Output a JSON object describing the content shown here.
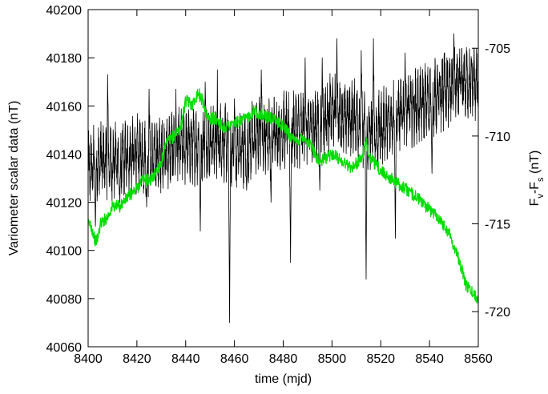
{
  "chart_data": {
    "type": "line",
    "xlabel": "time (mjd)",
    "ylabel_left": "Variometer scalar data (nT)",
    "ylabel_right": {
      "main": "F",
      "sub1": "v",
      "dash": "-F",
      "sub2": "s",
      "unit": " (nT)"
    },
    "xlim": [
      8400,
      8560
    ],
    "ylim_left": [
      40060,
      40200
    ],
    "ylim_right": [
      -722,
      -702.8
    ],
    "x_ticks": [
      8400,
      8420,
      8440,
      8460,
      8480,
      8500,
      8520,
      8540,
      8560
    ],
    "y_left_ticks": [
      40060,
      40080,
      40100,
      40120,
      40140,
      40160,
      40180,
      40200
    ],
    "y_right_ticks": [
      -705,
      -710,
      -715,
      -720
    ],
    "grid": false,
    "series": [
      {
        "axis": "left",
        "color": "#000000",
        "base": [
          [
            8400,
            40133
          ],
          [
            8405,
            40138
          ],
          [
            8410,
            40137
          ],
          [
            8415,
            40138
          ],
          [
            8420,
            40140
          ],
          [
            8425,
            40138
          ],
          [
            8430,
            40140
          ],
          [
            8435,
            40143
          ],
          [
            8440,
            40143
          ],
          [
            8445,
            40144
          ],
          [
            8450,
            40145
          ],
          [
            8455,
            40146
          ],
          [
            8460,
            40140
          ],
          [
            8465,
            40143
          ],
          [
            8470,
            40148
          ],
          [
            8475,
            40148
          ],
          [
            8480,
            40150
          ],
          [
            8485,
            40150
          ],
          [
            8490,
            40151
          ],
          [
            8495,
            40152
          ],
          [
            8500,
            40158
          ],
          [
            8505,
            40155
          ],
          [
            8510,
            40155
          ],
          [
            8515,
            40148
          ],
          [
            8520,
            40150
          ],
          [
            8525,
            40155
          ],
          [
            8530,
            40158
          ],
          [
            8535,
            40160
          ],
          [
            8540,
            40162
          ],
          [
            8545,
            40165
          ],
          [
            8550,
            40168
          ],
          [
            8555,
            40170
          ],
          [
            8560,
            40170
          ]
        ],
        "noise_amplitude": 15,
        "spikes": [
          [
            8403,
            40110
          ],
          [
            8413,
            40120
          ],
          [
            8424,
            40118
          ],
          [
            8436,
            40122
          ],
          [
            8446,
            40108
          ],
          [
            8453,
            40112
          ],
          [
            8458,
            40070
          ],
          [
            8465,
            40125
          ],
          [
            8475,
            40120
          ],
          [
            8483,
            40095
          ],
          [
            8495,
            40125
          ],
          [
            8514,
            40088
          ],
          [
            8526,
            40105
          ],
          [
            8541,
            40132
          ]
        ],
        "peaks": [
          [
            8408,
            40173
          ],
          [
            8425,
            40167
          ],
          [
            8436,
            40167
          ],
          [
            8448,
            40170
          ],
          [
            8453,
            40175
          ],
          [
            8460,
            40163
          ],
          [
            8471,
            40175
          ],
          [
            8489,
            40180
          ],
          [
            8496,
            40180
          ],
          [
            8502,
            40188
          ],
          [
            8512,
            40183
          ],
          [
            8517,
            40188
          ],
          [
            8530,
            40182
          ],
          [
            8546,
            40182
          ],
          [
            8550,
            40190
          ]
        ]
      },
      {
        "axis": "right",
        "color": "#00dd00",
        "base": [
          [
            8400,
            -715
          ],
          [
            8401,
            -715
          ],
          [
            8402,
            -715.5
          ],
          [
            8403,
            -716
          ],
          [
            8404,
            -715.8
          ],
          [
            8405,
            -715
          ],
          [
            8408,
            -714.6
          ],
          [
            8410,
            -714
          ],
          [
            8413,
            -714
          ],
          [
            8416,
            -713.5
          ],
          [
            8420,
            -713
          ],
          [
            8422,
            -712.5
          ],
          [
            8426,
            -712.5
          ],
          [
            8430,
            -711.5
          ],
          [
            8432,
            -710.5
          ],
          [
            8435,
            -710
          ],
          [
            8438,
            -709.5
          ],
          [
            8440,
            -708
          ],
          [
            8443,
            -708.2
          ],
          [
            8445,
            -707.5
          ],
          [
            8447,
            -708
          ],
          [
            8449,
            -709
          ],
          [
            8453,
            -709
          ],
          [
            8455,
            -709.5
          ],
          [
            8460,
            -709.3
          ],
          [
            8465,
            -709
          ],
          [
            8468,
            -708.5
          ],
          [
            8470,
            -708.7
          ],
          [
            8475,
            -709
          ],
          [
            8480,
            -709.4
          ],
          [
            8483,
            -710
          ],
          [
            8485,
            -710.4
          ],
          [
            8488,
            -710
          ],
          [
            8491,
            -710.5
          ],
          [
            8495,
            -711.5
          ],
          [
            8498,
            -711.2
          ],
          [
            8500,
            -711
          ],
          [
            8503,
            -711.3
          ],
          [
            8508,
            -711.8
          ],
          [
            8512,
            -711.3
          ],
          [
            8514,
            -710.4
          ],
          [
            8516,
            -711.3
          ],
          [
            8520,
            -712
          ],
          [
            8525,
            -712.5
          ],
          [
            8530,
            -713
          ],
          [
            8535,
            -713.5
          ],
          [
            8540,
            -714.2
          ],
          [
            8543,
            -714.5
          ],
          [
            8548,
            -715.5
          ],
          [
            8552,
            -717
          ],
          [
            8555,
            -718.5
          ],
          [
            8558,
            -719
          ],
          [
            8560,
            -719.3
          ]
        ],
        "noise_amplitude": 0.35
      }
    ]
  }
}
